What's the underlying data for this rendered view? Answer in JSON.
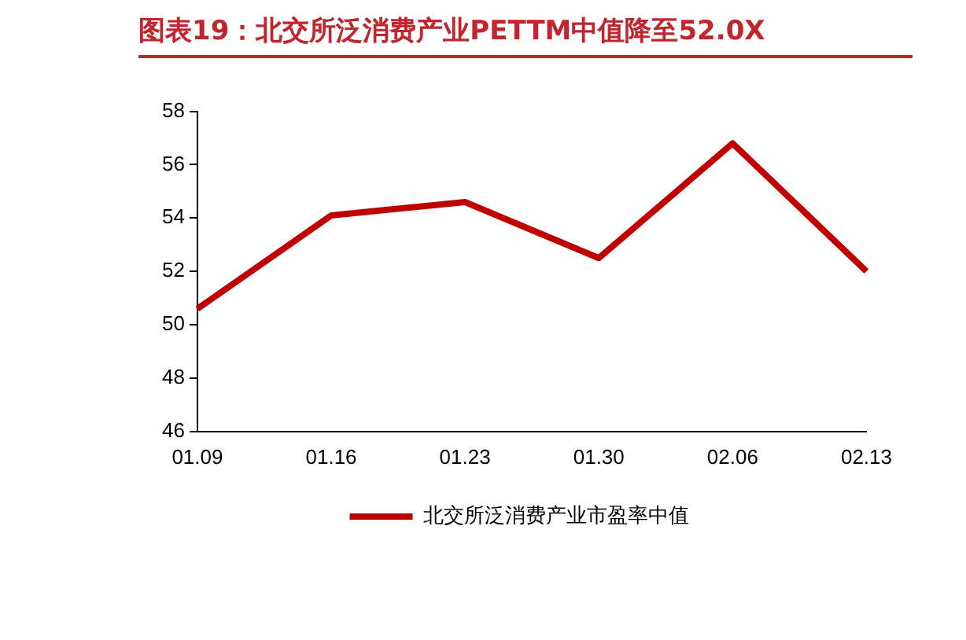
{
  "chart_data": {
    "type": "line",
    "title": "图表19：北交所泛消费产业PETTM中值降至52.0X",
    "categories": [
      "01.09",
      "01.16",
      "01.23",
      "01.30",
      "02.06",
      "02.13"
    ],
    "series": [
      {
        "name": "北交所泛消费产业市盈率中值",
        "color": "#c00000",
        "values": [
          50.6,
          54.1,
          54.6,
          52.5,
          56.8,
          52.0
        ]
      }
    ],
    "ylim": [
      46,
      58
    ],
    "yticks": [
      46,
      48,
      50,
      52,
      54,
      56,
      58
    ],
    "grid": false,
    "legend": "bottom",
    "marker": "none",
    "line_style": "solid"
  }
}
